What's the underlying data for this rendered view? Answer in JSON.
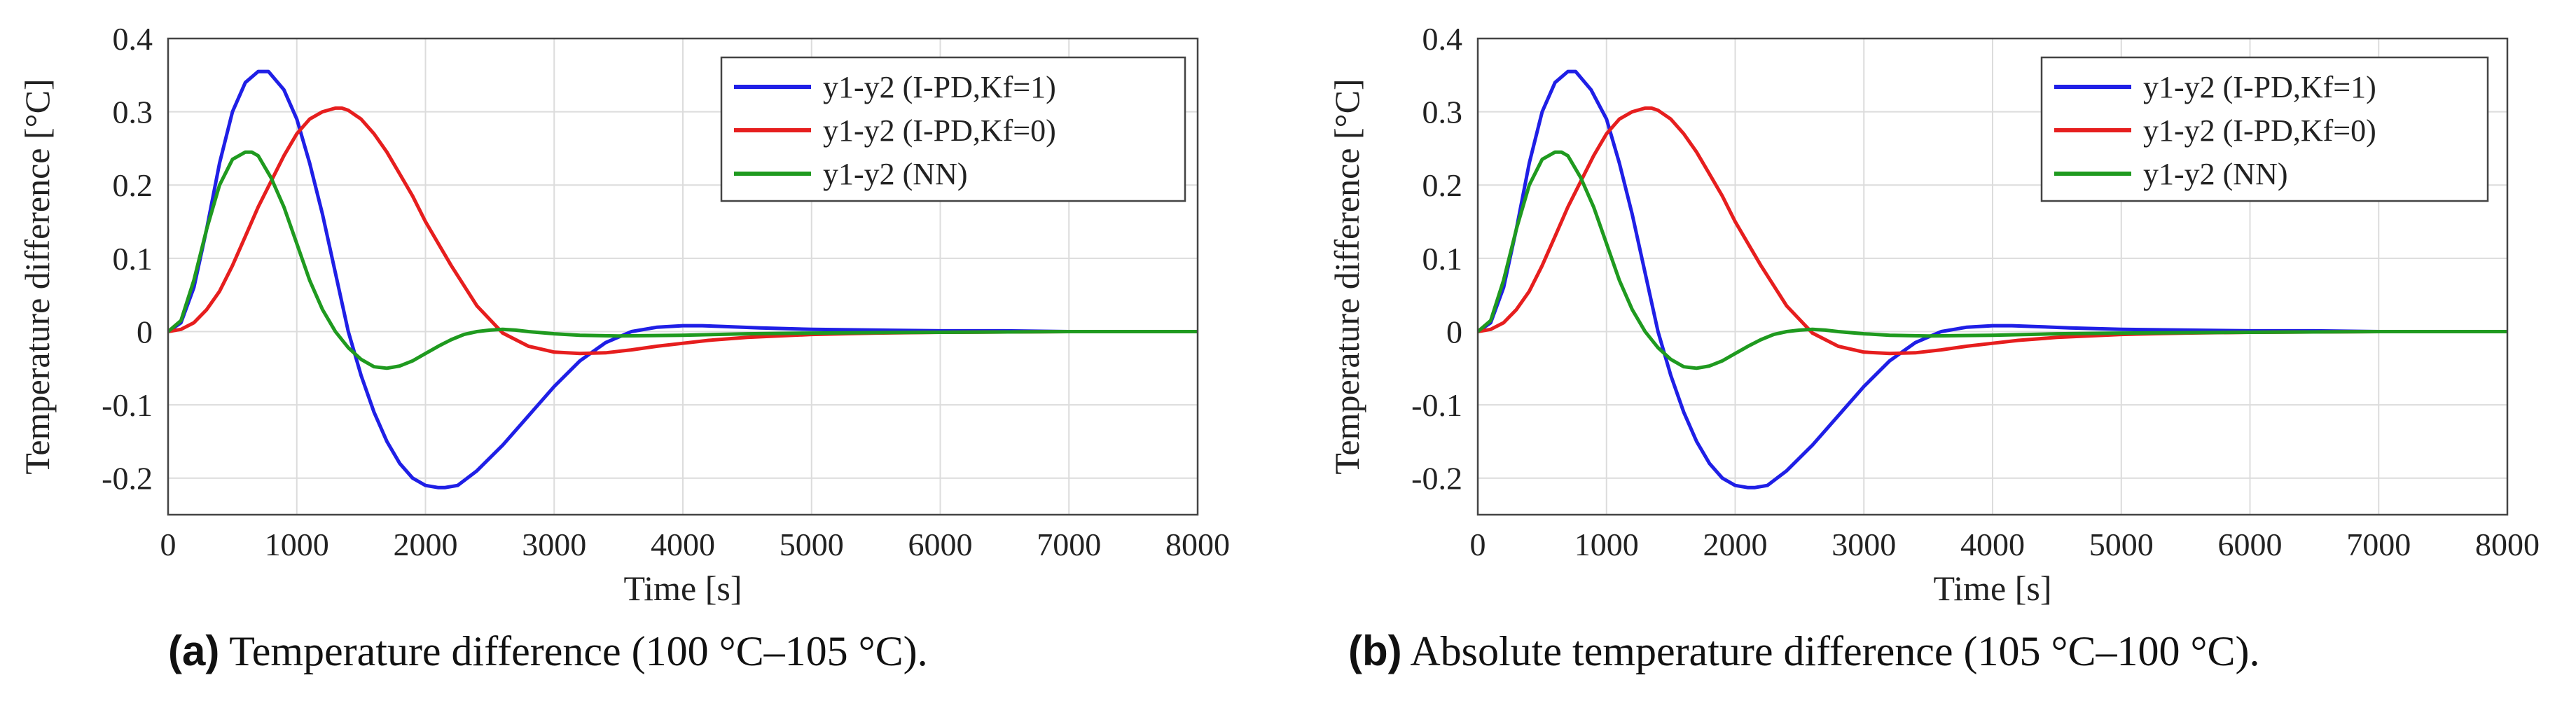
{
  "figure": {
    "captions": [
      {
        "label": "(a)",
        "text": "Temperature difference (100 °C–105 °C)."
      },
      {
        "label": "(b)",
        "text": "Absolute temperature difference (105 °C–100 °C)."
      }
    ]
  },
  "chart_data": [
    {
      "type": "line",
      "panel": "a",
      "xlabel": "Time [s]",
      "ylabel": "Temperature difference [°C]",
      "xlim": [
        0,
        8000
      ],
      "ylim": [
        -0.25,
        0.4
      ],
      "xticks": [
        0,
        1000,
        2000,
        3000,
        4000,
        5000,
        6000,
        7000,
        8000
      ],
      "yticks": [
        -0.2,
        -0.1,
        0,
        0.1,
        0.2,
        0.3,
        0.4
      ],
      "ytick_labels": [
        "-0.2",
        "-0.1",
        "0",
        "0.1",
        "0.2",
        "0.3",
        "0.4"
      ],
      "grid": true,
      "legend_position": "top-right",
      "series": [
        {
          "name": "y1-y2 (I-PD,Kf=1)",
          "color": "#1f1fe6",
          "x": [
            0,
            100,
            200,
            300,
            400,
            500,
            600,
            700,
            780,
            900,
            1000,
            1100,
            1200,
            1300,
            1400,
            1500,
            1600,
            1700,
            1800,
            1900,
            2000,
            2100,
            2150,
            2250,
            2400,
            2600,
            2800,
            3000,
            3200,
            3400,
            3600,
            3800,
            4000,
            4150,
            4300,
            4600,
            5000,
            5500,
            6000,
            6500,
            7000,
            7500,
            8000
          ],
          "y": [
            0,
            0.012,
            0.06,
            0.14,
            0.23,
            0.3,
            0.34,
            0.355,
            0.355,
            0.33,
            0.29,
            0.23,
            0.16,
            0.08,
            0.0,
            -0.06,
            -0.11,
            -0.15,
            -0.18,
            -0.2,
            -0.21,
            -0.213,
            -0.213,
            -0.21,
            -0.19,
            -0.155,
            -0.115,
            -0.075,
            -0.04,
            -0.015,
            0.0,
            0.006,
            0.008,
            0.008,
            0.007,
            0.005,
            0.003,
            0.002,
            0.001,
            0.001,
            0.0,
            0.0,
            0.0
          ]
        },
        {
          "name": "y1-y2 (I-PD,Kf=0)",
          "color": "#e61e1e",
          "x": [
            0,
            100,
            200,
            300,
            400,
            500,
            600,
            700,
            800,
            900,
            1000,
            1100,
            1200,
            1300,
            1350,
            1400,
            1500,
            1600,
            1700,
            1800,
            1900,
            2000,
            2200,
            2400,
            2600,
            2800,
            3000,
            3200,
            3400,
            3500,
            3600,
            3800,
            4000,
            4200,
            4500,
            5000,
            5500,
            6000,
            7000,
            8000
          ],
          "y": [
            0,
            0.003,
            0.012,
            0.03,
            0.055,
            0.09,
            0.13,
            0.17,
            0.205,
            0.24,
            0.27,
            0.29,
            0.3,
            0.305,
            0.305,
            0.302,
            0.29,
            0.27,
            0.245,
            0.215,
            0.185,
            0.15,
            0.09,
            0.035,
            -0.002,
            -0.02,
            -0.028,
            -0.03,
            -0.029,
            -0.027,
            -0.025,
            -0.02,
            -0.016,
            -0.012,
            -0.008,
            -0.004,
            -0.002,
            -0.001,
            0.0,
            0.0
          ]
        },
        {
          "name": "y1-y2 (NN)",
          "color": "#1f9a1f",
          "x": [
            0,
            100,
            200,
            300,
            400,
            500,
            600,
            650,
            700,
            800,
            900,
            1000,
            1100,
            1200,
            1300,
            1400,
            1500,
            1600,
            1700,
            1800,
            1900,
            2000,
            2100,
            2200,
            2300,
            2400,
            2500,
            2600,
            2700,
            2800,
            3000,
            3200,
            3500,
            4000,
            4500,
            5000,
            6000,
            7000,
            8000
          ],
          "y": [
            0,
            0.015,
            0.07,
            0.14,
            0.2,
            0.235,
            0.245,
            0.245,
            0.24,
            0.21,
            0.17,
            0.12,
            0.07,
            0.03,
            0.0,
            -0.022,
            -0.038,
            -0.048,
            -0.05,
            -0.047,
            -0.04,
            -0.03,
            -0.02,
            -0.011,
            -0.004,
            0.0,
            0.002,
            0.003,
            0.002,
            0.0,
            -0.003,
            -0.005,
            -0.006,
            -0.005,
            -0.003,
            -0.002,
            -0.001,
            0.0,
            0.0
          ]
        }
      ]
    },
    {
      "type": "line",
      "panel": "b",
      "xlabel": "Time [s]",
      "ylabel": "Temperature difference [°C]",
      "xlim": [
        0,
        8000
      ],
      "ylim": [
        -0.25,
        0.4
      ],
      "xticks": [
        0,
        1000,
        2000,
        3000,
        4000,
        5000,
        6000,
        7000,
        8000
      ],
      "yticks": [
        -0.2,
        -0.1,
        0,
        0.1,
        0.2,
        0.3,
        0.4
      ],
      "ytick_labels": [
        "-0.2",
        "-0.1",
        "0",
        "0.1",
        "0.2",
        "0.3",
        "0.4"
      ],
      "grid": true,
      "legend_position": "top-right",
      "series": [
        {
          "name": "y1-y2 (I-PD,Kf=1)",
          "color": "#1f1fe6",
          "x": [
            0,
            100,
            200,
            300,
            400,
            500,
            600,
            700,
            760,
            880,
            1000,
            1100,
            1200,
            1300,
            1400,
            1500,
            1600,
            1700,
            1800,
            1900,
            2000,
            2100,
            2150,
            2250,
            2400,
            2600,
            2800,
            3000,
            3200,
            3400,
            3600,
            3800,
            4000,
            4150,
            4300,
            4600,
            5000,
            5500,
            6000,
            6500,
            7000,
            7500,
            8000
          ],
          "y": [
            0,
            0.012,
            0.06,
            0.14,
            0.23,
            0.3,
            0.34,
            0.355,
            0.355,
            0.33,
            0.29,
            0.23,
            0.16,
            0.08,
            0.0,
            -0.06,
            -0.11,
            -0.15,
            -0.18,
            -0.2,
            -0.21,
            -0.213,
            -0.213,
            -0.21,
            -0.19,
            -0.155,
            -0.115,
            -0.075,
            -0.04,
            -0.015,
            0.0,
            0.006,
            0.008,
            0.008,
            0.007,
            0.005,
            0.003,
            0.002,
            0.001,
            0.001,
            0.0,
            0.0,
            0.0
          ]
        },
        {
          "name": "y1-y2 (I-PD,Kf=0)",
          "color": "#e61e1e",
          "x": [
            0,
            100,
            200,
            300,
            400,
            500,
            600,
            700,
            800,
            900,
            1000,
            1100,
            1200,
            1300,
            1350,
            1400,
            1500,
            1600,
            1700,
            1800,
            1900,
            2000,
            2200,
            2400,
            2600,
            2800,
            3000,
            3200,
            3400,
            3500,
            3600,
            3800,
            4000,
            4200,
            4500,
            5000,
            5500,
            6000,
            7000,
            8000
          ],
          "y": [
            0,
            0.003,
            0.012,
            0.03,
            0.055,
            0.09,
            0.13,
            0.17,
            0.205,
            0.24,
            0.27,
            0.29,
            0.3,
            0.305,
            0.305,
            0.302,
            0.29,
            0.27,
            0.245,
            0.215,
            0.185,
            0.15,
            0.09,
            0.035,
            -0.002,
            -0.02,
            -0.028,
            -0.03,
            -0.029,
            -0.027,
            -0.025,
            -0.02,
            -0.016,
            -0.012,
            -0.008,
            -0.004,
            -0.002,
            -0.001,
            0.0,
            0.0
          ]
        },
        {
          "name": "y1-y2 (NN)",
          "color": "#1f9a1f",
          "x": [
            0,
            100,
            200,
            300,
            400,
            500,
            600,
            650,
            700,
            800,
            900,
            1000,
            1100,
            1200,
            1300,
            1400,
            1500,
            1600,
            1700,
            1800,
            1900,
            2000,
            2100,
            2200,
            2300,
            2400,
            2500,
            2600,
            2700,
            2800,
            3000,
            3200,
            3500,
            4000,
            4500,
            5000,
            6000,
            7000,
            8000
          ],
          "y": [
            0,
            0.015,
            0.07,
            0.14,
            0.2,
            0.235,
            0.245,
            0.245,
            0.24,
            0.21,
            0.17,
            0.12,
            0.07,
            0.03,
            0.0,
            -0.022,
            -0.038,
            -0.048,
            -0.05,
            -0.047,
            -0.04,
            -0.03,
            -0.02,
            -0.011,
            -0.004,
            0.0,
            0.002,
            0.003,
            0.002,
            0.0,
            -0.003,
            -0.005,
            -0.006,
            -0.005,
            -0.003,
            -0.002,
            -0.001,
            0.0,
            0.0
          ]
        }
      ]
    }
  ]
}
